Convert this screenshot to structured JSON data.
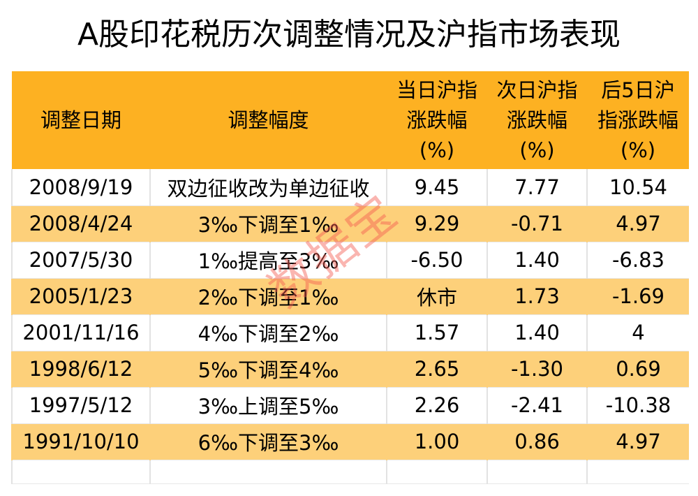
{
  "chart_data": {
    "type": "table",
    "title": "A股印花税历次调整情况及沪指市场表现",
    "columns": [
      "调整日期",
      "调整幅度",
      "当日沪指涨跌幅(%)",
      "次日沪指涨跌幅(%)",
      "后5日沪指涨跌幅(%)"
    ],
    "header_lines": [
      [
        "调整日期"
      ],
      [
        "调整幅度"
      ],
      [
        "当日沪指",
        "涨跌幅",
        "(%)"
      ],
      [
        "次日沪指",
        "涨跌幅",
        "(%)"
      ],
      [
        "后5日沪",
        "指涨跌幅",
        "(%)"
      ]
    ],
    "rows": [
      [
        "2008/9/19",
        "双边征收改为单边征收",
        "9.45",
        "7.77",
        "10.54"
      ],
      [
        "2008/4/24",
        "3‰下调至1‰",
        "9.29",
        "-0.71",
        "4.97"
      ],
      [
        "2007/5/30",
        "1‰提高至3‰",
        "-6.50",
        "1.40",
        "-6.83"
      ],
      [
        "2005/1/23",
        "2‰下调至1‰",
        "休市",
        "1.73",
        "-1.69"
      ],
      [
        "2001/11/16",
        "4‰下调至2‰",
        "1.57",
        "1.40",
        "4"
      ],
      [
        "1998/6/12",
        "5‰下调至4‰",
        "2.65",
        "-1.30",
        "0.69"
      ],
      [
        "1997/5/12",
        "3‰上调至5‰",
        "2.26",
        "-2.41",
        "-10.38"
      ],
      [
        "1991/10/10",
        "6‰下调至3‰",
        "1.00",
        "0.86",
        "4.97"
      ]
    ],
    "colors": {
      "header": "#FDB122",
      "stripe": "#FDD07A",
      "watermark": "#F55A50"
    }
  },
  "watermark": "数据宝"
}
